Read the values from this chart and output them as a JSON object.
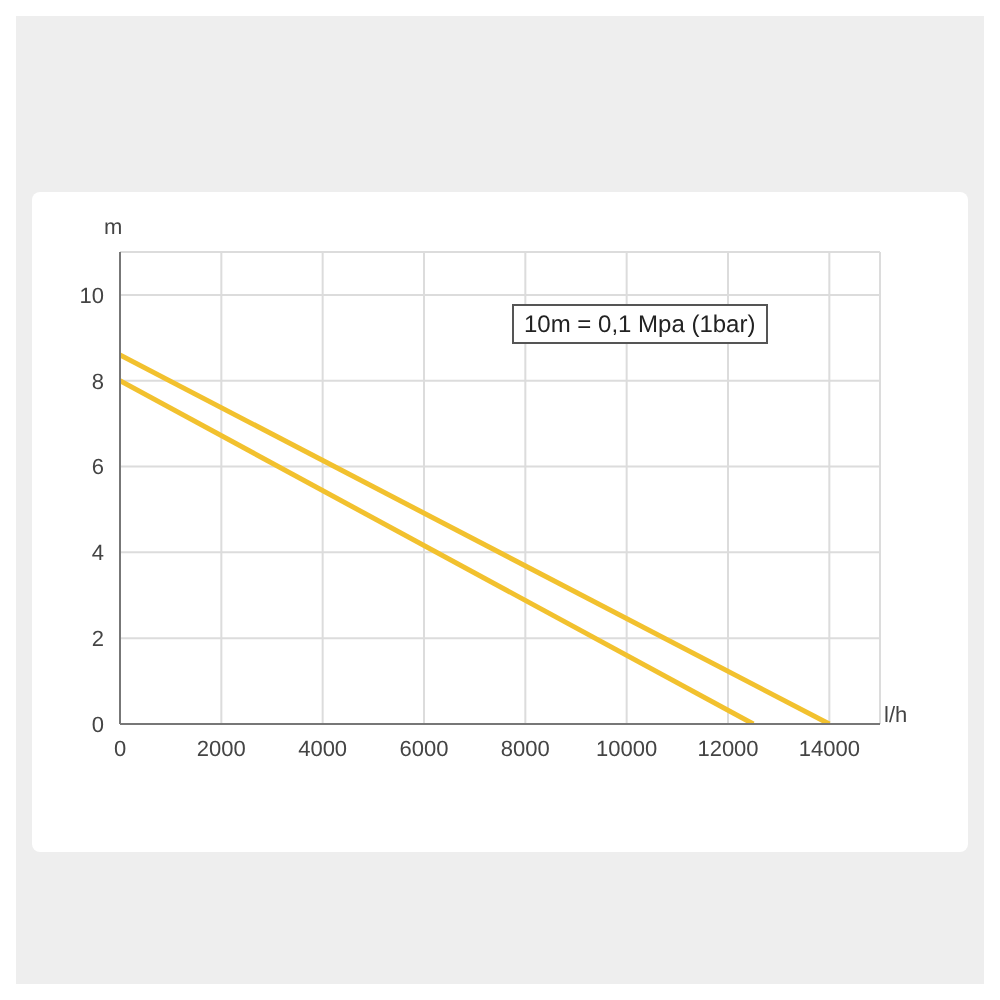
{
  "chart_data": {
    "type": "line",
    "xlabel": "l/h",
    "ylabel": "m",
    "annotations": [
      "10m = 0,1 Mpa (1bar)"
    ],
    "series": [
      {
        "color": "#f2c12e",
        "x": [
          0,
          14000
        ],
        "values": [
          8.6,
          0
        ]
      },
      {
        "color": "#f2c12e",
        "x": [
          0,
          12500
        ],
        "values": [
          8,
          0
        ]
      }
    ],
    "xlim": [
      0,
      15000
    ],
    "xticks": [
      0,
      2000,
      4000,
      6000,
      8000,
      10000,
      12000,
      14000
    ],
    "ylim": [
      0,
      11
    ],
    "yticks": [
      0,
      2,
      4,
      6,
      8,
      10
    ],
    "grid": true,
    "marker": "none",
    "line_style": "solid"
  }
}
